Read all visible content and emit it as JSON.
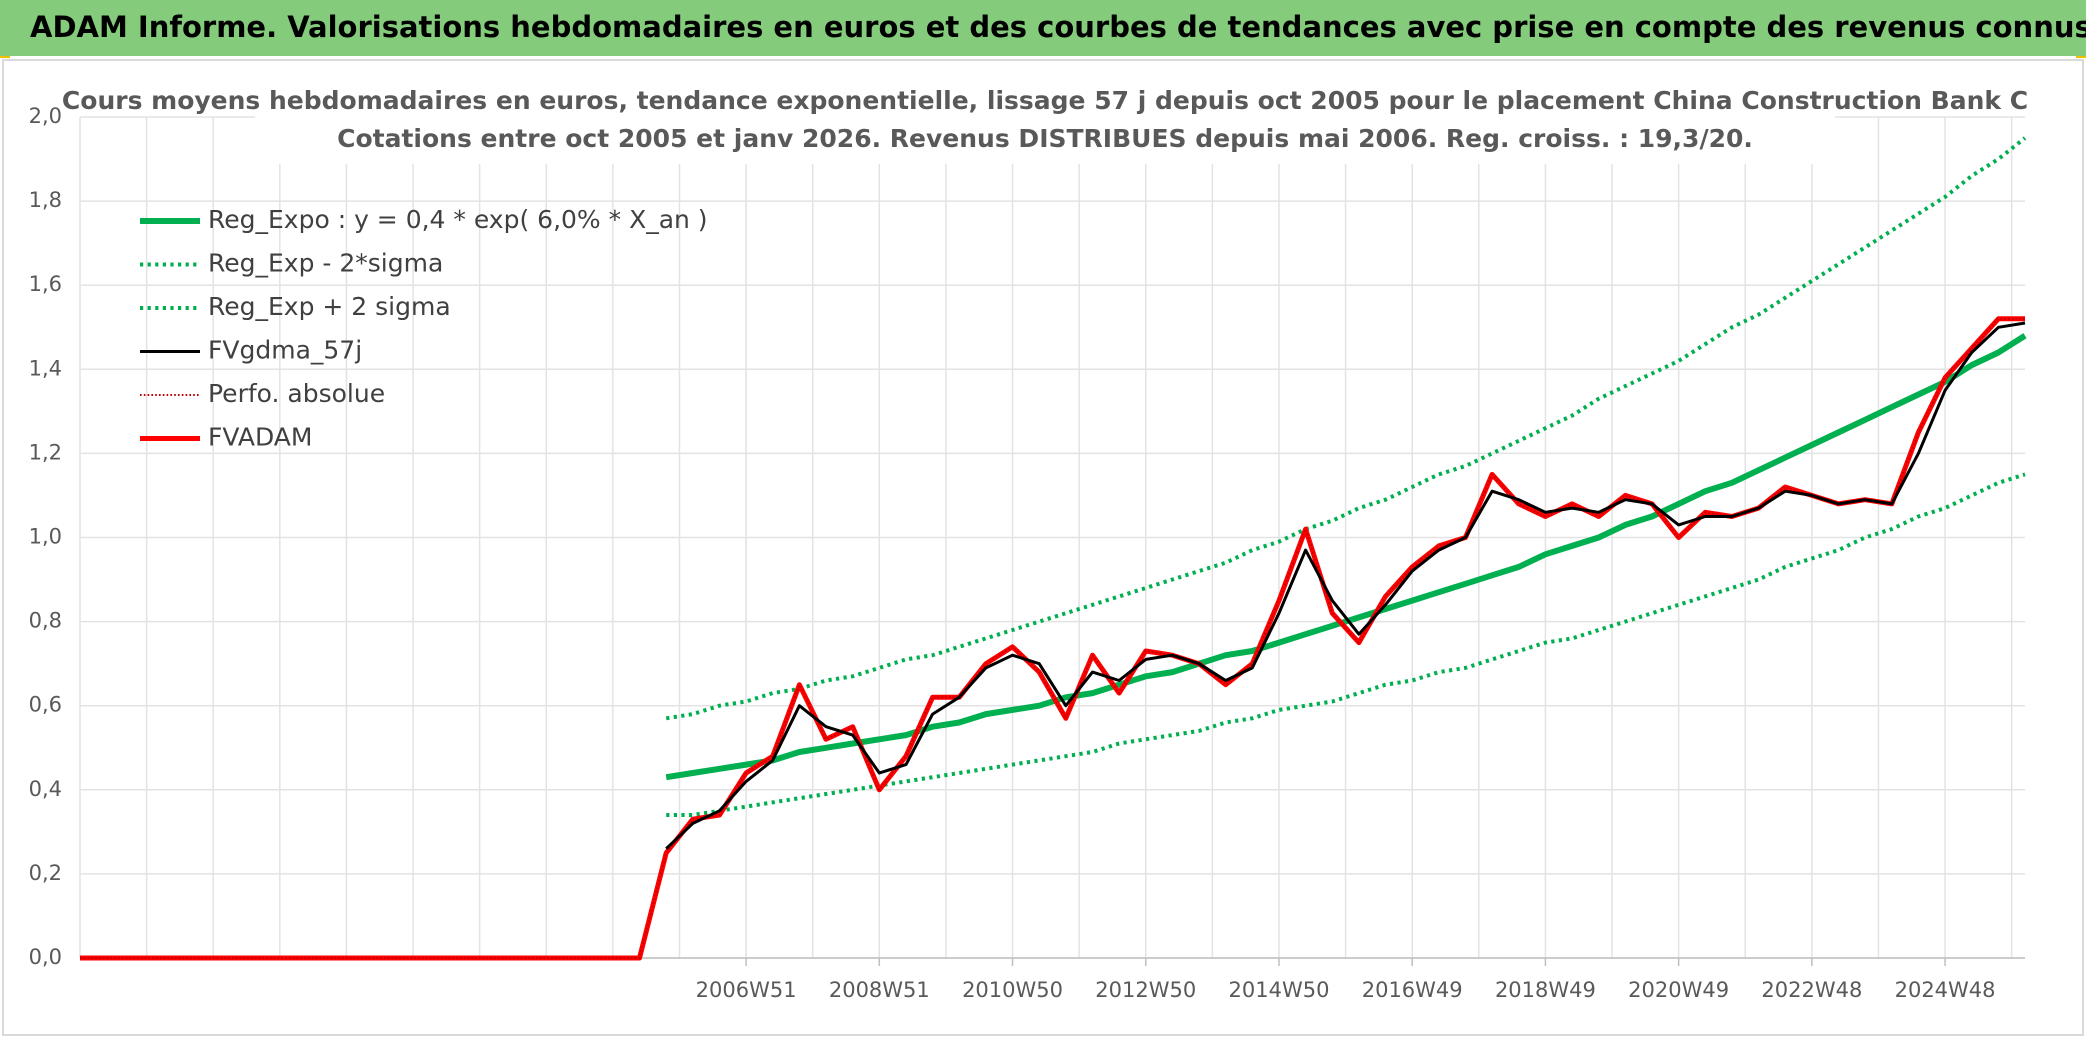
{
  "chart_data": {
    "type": "line",
    "header": "ADAM Informe. Valorisations hebdomadaires en euros et des courbes de tendances avec prise en compte des revenus connus distribués",
    "title": "Cours moyens hebdomadaires en euros, tendance exponentielle, lissage 57 j depuis oct 2005 pour le placement China Construction Bank C",
    "subtitle": "Cotations entre oct 2005 et janv 2026. Revenus DISTRIBUES depuis mai 2006. Reg. croiss. : 19,3/20.",
    "categories": [
      null,
      null,
      null,
      null,
      null,
      null,
      null,
      null,
      null,
      null,
      null,
      null,
      null,
      null,
      null,
      null,
      null,
      null,
      null,
      null,
      null,
      null,
      null,
      null,
      null,
      "2006W51",
      null,
      null,
      null,
      null,
      "2008W51",
      null,
      null,
      null,
      null,
      "2010W50",
      null,
      null,
      null,
      null,
      "2012W50",
      null,
      null,
      null,
      null,
      "2014W50",
      null,
      null,
      null,
      null,
      "2016W49",
      null,
      null,
      null,
      null,
      "2018W49",
      null,
      null,
      null,
      null,
      "2020W49",
      null,
      null,
      null,
      null,
      "2022W48",
      null,
      null,
      null,
      null,
      "2024W48",
      null,
      null,
      null
    ],
    "ylim": [
      0,
      2
    ],
    "yticks": [
      {
        "value": 0,
        "label": "0,0"
      },
      {
        "value": 0.2,
        "label": "0,2"
      },
      {
        "value": 0.4,
        "label": "0,4"
      },
      {
        "value": 0.6,
        "label": "0,6"
      },
      {
        "value": 0.8,
        "label": "0,8"
      },
      {
        "value": 1,
        "label": "1,0"
      },
      {
        "value": 1.2,
        "label": "1,2"
      },
      {
        "value": 1.4,
        "label": "1,4"
      },
      {
        "value": 1.6,
        "label": "1,6"
      },
      {
        "value": 1.8,
        "label": "1,8"
      },
      {
        "value": 2,
        "label": "2,0"
      }
    ],
    "grid": true,
    "legend": "upper left",
    "series": [
      {
        "name": "Reg_Expo : y = 0,4 * exp( 6,0% *  X_an )",
        "color": "#00b050",
        "dash": "solid",
        "line_width": 6,
        "values": [
          null,
          null,
          null,
          null,
          null,
          null,
          null,
          null,
          null,
          null,
          null,
          null,
          null,
          null,
          null,
          null,
          null,
          null,
          null,
          null,
          null,
          null,
          0.43,
          0.44,
          0.45,
          0.46,
          0.47,
          0.49,
          0.5,
          0.51,
          0.52,
          0.53,
          0.55,
          0.56,
          0.58,
          0.59,
          0.6,
          0.62,
          0.63,
          0.65,
          0.67,
          0.68,
          0.7,
          0.72,
          0.73,
          0.75,
          0.77,
          0.79,
          0.81,
          0.83,
          0.85,
          0.87,
          0.89,
          0.91,
          0.93,
          0.96,
          0.98,
          1.0,
          1.03,
          1.05,
          1.08,
          1.11,
          1.13,
          1.16,
          1.19,
          1.22,
          1.25,
          1.28,
          1.31,
          1.34,
          1.37,
          1.41,
          1.44,
          1.48
        ]
      },
      {
        "name": "Reg_Exp - 2*sigma",
        "color": "#00b050",
        "dash": "dotted",
        "line_width": 4,
        "values": [
          null,
          null,
          null,
          null,
          null,
          null,
          null,
          null,
          null,
          null,
          null,
          null,
          null,
          null,
          null,
          null,
          null,
          null,
          null,
          null,
          null,
          null,
          0.34,
          0.34,
          0.35,
          0.36,
          0.37,
          0.38,
          0.39,
          0.4,
          0.41,
          0.42,
          0.43,
          0.44,
          0.45,
          0.46,
          0.47,
          0.48,
          0.49,
          0.51,
          0.52,
          0.53,
          0.54,
          0.56,
          0.57,
          0.59,
          0.6,
          0.61,
          0.63,
          0.65,
          0.66,
          0.68,
          0.69,
          0.71,
          0.73,
          0.75,
          0.76,
          0.78,
          0.8,
          0.82,
          0.84,
          0.86,
          0.88,
          0.9,
          0.93,
          0.95,
          0.97,
          1.0,
          1.02,
          1.05,
          1.07,
          1.1,
          1.13,
          1.15
        ]
      },
      {
        "name": "Reg_Exp + 2 sigma",
        "color": "#00b050",
        "dash": "dotted",
        "line_width": 4,
        "values": [
          null,
          null,
          null,
          null,
          null,
          null,
          null,
          null,
          null,
          null,
          null,
          null,
          null,
          null,
          null,
          null,
          null,
          null,
          null,
          null,
          null,
          null,
          0.57,
          0.58,
          0.6,
          0.61,
          0.63,
          0.64,
          0.66,
          0.67,
          0.69,
          0.71,
          0.72,
          0.74,
          0.76,
          0.78,
          0.8,
          0.82,
          0.84,
          0.86,
          0.88,
          0.9,
          0.92,
          0.94,
          0.97,
          0.99,
          1.02,
          1.04,
          1.07,
          1.09,
          1.12,
          1.15,
          1.17,
          1.2,
          1.23,
          1.26,
          1.29,
          1.33,
          1.36,
          1.39,
          1.42,
          1.46,
          1.5,
          1.53,
          1.57,
          1.61,
          1.65,
          1.69,
          1.73,
          1.77,
          1.81,
          1.86,
          1.9,
          1.95
        ]
      },
      {
        "name": "FVgdma_57j",
        "color": "#000000",
        "dash": "solid",
        "line_width": 3,
        "values": [
          null,
          null,
          null,
          null,
          null,
          null,
          null,
          null,
          null,
          null,
          null,
          null,
          null,
          null,
          null,
          null,
          null,
          null,
          null,
          null,
          null,
          null,
          0.26,
          0.32,
          0.35,
          0.42,
          0.47,
          0.6,
          0.55,
          0.53,
          0.44,
          0.46,
          0.58,
          0.62,
          0.69,
          0.72,
          0.7,
          0.6,
          0.68,
          0.66,
          0.71,
          0.72,
          0.7,
          0.66,
          0.69,
          0.82,
          0.97,
          0.85,
          0.77,
          0.84,
          0.92,
          0.97,
          1.0,
          1.11,
          1.09,
          1.06,
          1.07,
          1.06,
          1.09,
          1.08,
          1.03,
          1.05,
          1.05,
          1.07,
          1.11,
          1.1,
          1.08,
          1.09,
          1.08,
          1.2,
          1.35,
          1.44,
          1.5,
          1.51
        ]
      },
      {
        "name": "Perfo. absolue",
        "color": "#c00000",
        "dash": "dotted",
        "line_width": 2,
        "values": [
          0,
          0,
          0,
          0,
          0,
          0,
          0,
          0,
          0,
          0,
          0,
          0,
          0,
          0,
          0,
          0,
          0,
          0,
          0,
          0,
          0,
          0,
          0.25,
          0.33,
          0.34,
          0.44,
          0.48,
          0.65,
          0.52,
          0.55,
          0.4,
          0.48,
          0.62,
          0.62,
          0.7,
          0.74,
          0.68,
          0.57,
          0.72,
          0.63,
          0.73,
          0.72,
          0.7,
          0.65,
          0.7,
          0.85,
          1.02,
          0.82,
          0.75,
          0.86,
          0.93,
          0.98,
          1.0,
          1.15,
          1.08,
          1.05,
          1.08,
          1.05,
          1.1,
          1.08,
          1.0,
          1.06,
          1.05,
          1.07,
          1.12,
          1.1,
          1.08,
          1.09,
          1.08,
          1.25,
          1.38,
          1.45,
          1.52,
          1.52
        ]
      },
      {
        "name": "FVADAM",
        "color": "#ff0000",
        "dash": "solid",
        "line_width": 5,
        "values": [
          0,
          0,
          0,
          0,
          0,
          0,
          0,
          0,
          0,
          0,
          0,
          0,
          0,
          0,
          0,
          0,
          0,
          0,
          0,
          0,
          0,
          0,
          0.25,
          0.33,
          0.34,
          0.44,
          0.48,
          0.65,
          0.52,
          0.55,
          0.4,
          0.48,
          0.62,
          0.62,
          0.7,
          0.74,
          0.68,
          0.57,
          0.72,
          0.63,
          0.73,
          0.72,
          0.7,
          0.65,
          0.7,
          0.85,
          1.02,
          0.82,
          0.75,
          0.86,
          0.93,
          0.98,
          1.0,
          1.15,
          1.08,
          1.05,
          1.08,
          1.05,
          1.1,
          1.08,
          1.0,
          1.06,
          1.05,
          1.07,
          1.12,
          1.1,
          1.08,
          1.09,
          1.08,
          1.25,
          1.38,
          1.45,
          1.52,
          1.52
        ]
      }
    ]
  }
}
